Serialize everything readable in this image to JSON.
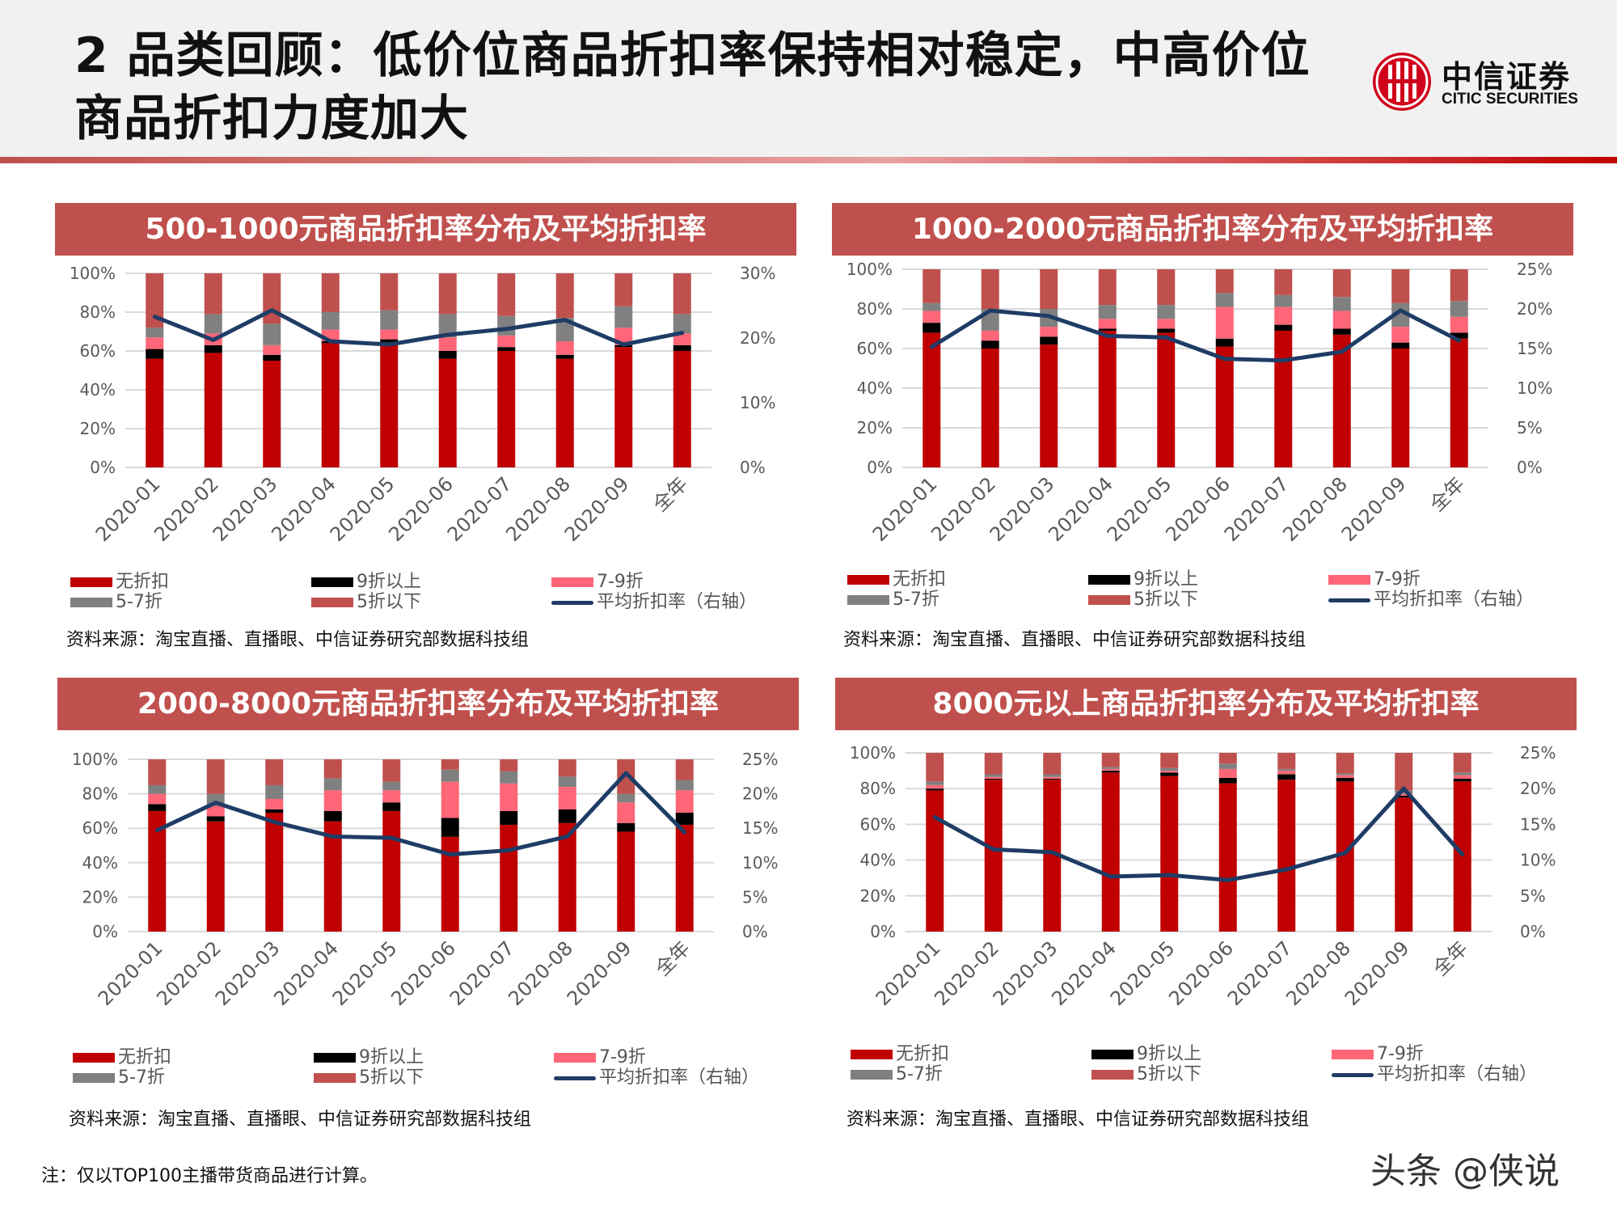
{
  "header": {
    "title": "2 品类回顾：低价位商品折扣率保持相对稳定，中高价位商品折扣力度加大",
    "logo_cn": "中信证券",
    "logo_en": "CITIC SECURITIES"
  },
  "colors": {
    "无折扣": "#c00000",
    "9折以上": "#000000",
    "7-9折": "#ff6677",
    "5-7折": "#808080",
    "5折以下": "#c0504d",
    "平均折扣率（右轴）": "#1f3c66",
    "title_bar": "#c0504d"
  },
  "chart_data": [
    {
      "type": "bar",
      "stacked": true,
      "title": "500-1000元商品折扣率分布及平均折扣率",
      "categories": [
        "2020-01",
        "2020-02",
        "2020-03",
        "2020-04",
        "2020-05",
        "2020-06",
        "2020-07",
        "2020-08",
        "2020-09",
        "全年"
      ],
      "ylim": [
        0,
        100
      ],
      "yticks": [
        "0%",
        "20%",
        "40%",
        "60%",
        "80%",
        "100%"
      ],
      "y2lim": [
        0,
        30
      ],
      "y2ticks": [
        "0%",
        "10%",
        "20%",
        "30%"
      ],
      "series": [
        {
          "name": "无折扣",
          "values": [
            56,
            59,
            55,
            64,
            63,
            56,
            60,
            56,
            62,
            60
          ]
        },
        {
          "name": "9折以上",
          "values": [
            5,
            4,
            3,
            1,
            3,
            4,
            2,
            2,
            1,
            3
          ]
        },
        {
          "name": "7-9折",
          "values": [
            6,
            6,
            5,
            6,
            5,
            7,
            6,
            7,
            9,
            6
          ]
        },
        {
          "name": "5-7折",
          "values": [
            5,
            10,
            11,
            9,
            10,
            12,
            10,
            12,
            11,
            10
          ]
        },
        {
          "name": "5折以下",
          "values": [
            28,
            21,
            26,
            20,
            19,
            21,
            22,
            23,
            17,
            21
          ]
        }
      ],
      "line": {
        "name": "平均折扣率（右轴）",
        "values": [
          23.3,
          19.7,
          24.3,
          19.5,
          19.0,
          20.5,
          21.4,
          22.8,
          19.0,
          20.8
        ]
      },
      "legend": "bottom",
      "source": "资料来源：淘宝直播、直播眼、中信证券研究部数据科技组"
    },
    {
      "type": "bar",
      "stacked": true,
      "title": "1000-2000元商品折扣率分布及平均折扣率",
      "categories": [
        "2020-01",
        "2020-02",
        "2020-03",
        "2020-04",
        "2020-05",
        "2020-06",
        "2020-07",
        "2020-08",
        "2020-09",
        "全年"
      ],
      "ylim": [
        0,
        100
      ],
      "yticks": [
        "0%",
        "20%",
        "40%",
        "60%",
        "80%",
        "100%"
      ],
      "y2lim": [
        0,
        25
      ],
      "y2ticks": [
        "0%",
        "5%",
        "10%",
        "15%",
        "20%",
        "25%"
      ],
      "series": [
        {
          "name": "无折扣",
          "values": [
            68,
            60,
            62,
            69,
            68,
            61,
            69,
            67,
            60,
            65
          ]
        },
        {
          "name": "9折以上",
          "values": [
            5,
            4,
            4,
            1,
            2,
            4,
            3,
            3,
            3,
            3
          ]
        },
        {
          "name": "7-9折",
          "values": [
            6,
            5,
            5,
            5,
            5,
            16,
            9,
            9,
            8,
            8
          ]
        },
        {
          "name": "5-7折",
          "values": [
            4,
            11,
            9,
            7,
            7,
            7,
            6,
            7,
            12,
            8
          ]
        },
        {
          "name": "5折以下",
          "values": [
            17,
            20,
            20,
            18,
            18,
            12,
            13,
            14,
            17,
            16
          ]
        }
      ],
      "line": {
        "name": "平均折扣率（右轴）",
        "values": [
          15.2,
          19.8,
          19.1,
          16.6,
          16.4,
          13.7,
          13.5,
          14.6,
          19.8,
          16.0
        ]
      },
      "legend": "bottom",
      "source": "资料来源：淘宝直播、直播眼、中信证券研究部数据科技组"
    },
    {
      "type": "bar",
      "stacked": true,
      "title": "2000-8000元商品折扣率分布及平均折扣率",
      "categories": [
        "2020-01",
        "2020-02",
        "2020-03",
        "2020-04",
        "2020-05",
        "2020-06",
        "2020-07",
        "2020-08",
        "2020-09",
        "全年"
      ],
      "ylim": [
        0,
        100
      ],
      "yticks": [
        "0%",
        "20%",
        "40%",
        "60%",
        "80%",
        "100%"
      ],
      "y2lim": [
        0,
        25
      ],
      "y2ticks": [
        "0%",
        "5%",
        "10%",
        "15%",
        "20%",
        "25%"
      ],
      "series": [
        {
          "name": "无折扣",
          "values": [
            70,
            64,
            69,
            64,
            70,
            55,
            62,
            63,
            58,
            62
          ]
        },
        {
          "name": "9折以上",
          "values": [
            4,
            3,
            2,
            6,
            5,
            11,
            8,
            8,
            5,
            7
          ]
        },
        {
          "name": "7-9折",
          "values": [
            6,
            6,
            6,
            12,
            7,
            21,
            16,
            13,
            12,
            13
          ]
        },
        {
          "name": "5-7折",
          "values": [
            5,
            7,
            8,
            7,
            5,
            7,
            7,
            6,
            5,
            6
          ]
        },
        {
          "name": "5折以下",
          "values": [
            15,
            20,
            15,
            11,
            13,
            6,
            7,
            10,
            20,
            12
          ]
        }
      ],
      "line": {
        "name": "平均折扣率（右轴）",
        "values": [
          14.7,
          18.7,
          15.9,
          13.8,
          13.6,
          11.2,
          11.8,
          13.8,
          23.0,
          14.4
        ]
      },
      "legend": "bottom",
      "source": "资料来源：淘宝直播、直播眼、中信证券研究部数据科技组"
    },
    {
      "type": "bar",
      "stacked": true,
      "title": "8000元以上商品折扣率分布及平均折扣率",
      "categories": [
        "2020-01",
        "2020-02",
        "2020-03",
        "2020-04",
        "2020-05",
        "2020-06",
        "2020-07",
        "2020-08",
        "2020-09",
        "全年"
      ],
      "ylim": [
        0,
        100
      ],
      "yticks": [
        "0%",
        "20%",
        "40%",
        "60%",
        "80%",
        "100%"
      ],
      "y2lim": [
        0,
        25
      ],
      "y2ticks": [
        "0%",
        "5%",
        "10%",
        "15%",
        "20%",
        "25%"
      ],
      "series": [
        {
          "name": "无折扣",
          "values": [
            79,
            85,
            85,
            89,
            87,
            83,
            85,
            84,
            75,
            84
          ]
        },
        {
          "name": "9折以上",
          "values": [
            1,
            0.5,
            0.5,
            1,
            2,
            3,
            3,
            2,
            1,
            1.5
          ]
        },
        {
          "name": "7-9折",
          "values": [
            2,
            1,
            1,
            1,
            1,
            5,
            2,
            1.5,
            1,
            2
          ]
        },
        {
          "name": "5-7折",
          "values": [
            2,
            1.5,
            1.5,
            1,
            1.5,
            3,
            1,
            1,
            2,
            1.5
          ]
        },
        {
          "name": "5折以下",
          "values": [
            16,
            12,
            12,
            8,
            8.5,
            6,
            9,
            11.5,
            21,
            11
          ]
        }
      ],
      "line": {
        "name": "平均折扣率（右轴）",
        "values": [
          16.0,
          11.5,
          11.1,
          7.7,
          7.9,
          7.2,
          8.7,
          11.0,
          20.0,
          10.8
        ]
      },
      "legend": "bottom",
      "source": "资料来源：淘宝直播、直播眼、中信证券研究部数据科技组"
    }
  ],
  "footer": {
    "note": "注：仅以TOP100主播带货商品进行计算。",
    "watermark": "头条 @侠说"
  }
}
